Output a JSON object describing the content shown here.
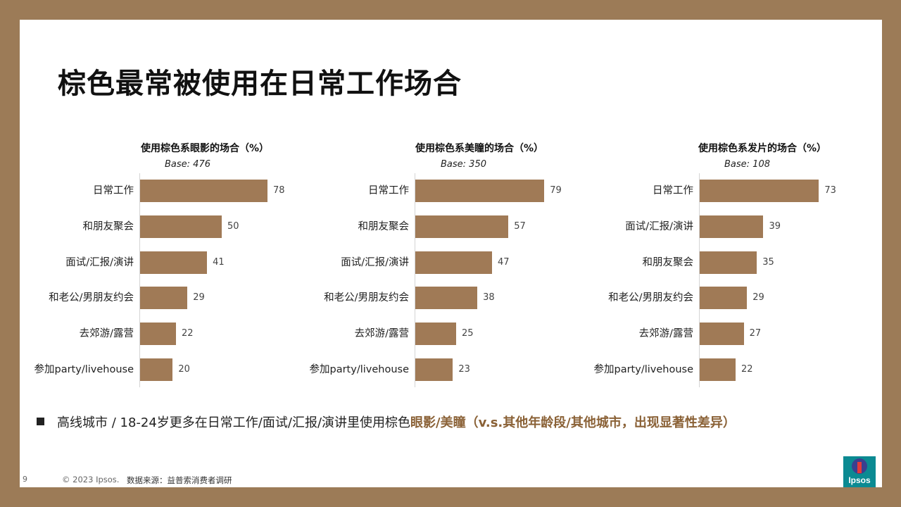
{
  "title": "棕色最常被使用在日常工作场合",
  "chart_data": [
    {
      "type": "bar",
      "orientation": "horizontal",
      "title": "使用棕色系眼影的场合（%）",
      "base": "Base: 476",
      "categories": [
        "日常工作",
        "和朋友聚会",
        "面试/汇报/演讲",
        "和老公/男朋友约会",
        "去郊游/露营",
        "参加party/livehouse"
      ],
      "values": [
        78,
        50,
        41,
        29,
        22,
        20
      ],
      "xlim": [
        0,
        100
      ],
      "grid": false,
      "color": "#a07a56"
    },
    {
      "type": "bar",
      "orientation": "horizontal",
      "title": "使用棕色系美瞳的场合（%）",
      "base": "Base: 350",
      "categories": [
        "日常工作",
        "和朋友聚会",
        "面试/汇报/演讲",
        "和老公/男朋友约会",
        "去郊游/露营",
        "参加party/livehouse"
      ],
      "values": [
        79,
        57,
        47,
        38,
        25,
        23
      ],
      "xlim": [
        0,
        100
      ],
      "grid": false,
      "color": "#a07a56"
    },
    {
      "type": "bar",
      "orientation": "horizontal",
      "title": "使用棕色系发片的场合（%）",
      "base": "Base: 108",
      "categories": [
        "日常工作",
        "面试/汇报/演讲",
        "和朋友聚会",
        "和老公/男朋友约会",
        "去郊游/露营",
        "参加party/livehouse"
      ],
      "values": [
        73,
        39,
        35,
        29,
        27,
        22
      ],
      "xlim": [
        0,
        100
      ],
      "grid": false,
      "color": "#a07a56"
    }
  ],
  "note": {
    "text_plain": "高线城市 / 18-24岁更多在日常工作/面试/汇报/演讲里使用棕色",
    "text_highlight": "眼影/美瞳（v.s.其他年龄段/其他城市，出现显著性差异）"
  },
  "footer": {
    "page_number": "9",
    "copyright": "© 2023 Ipsos.",
    "source": "数据来源：益普索消费者调研"
  },
  "logo": {
    "text": "Ipsos"
  },
  "colors": {
    "bar": "#a07a56",
    "frame": "#9c7b57",
    "highlight": "#8a6136",
    "logo": "#0b8a92"
  }
}
